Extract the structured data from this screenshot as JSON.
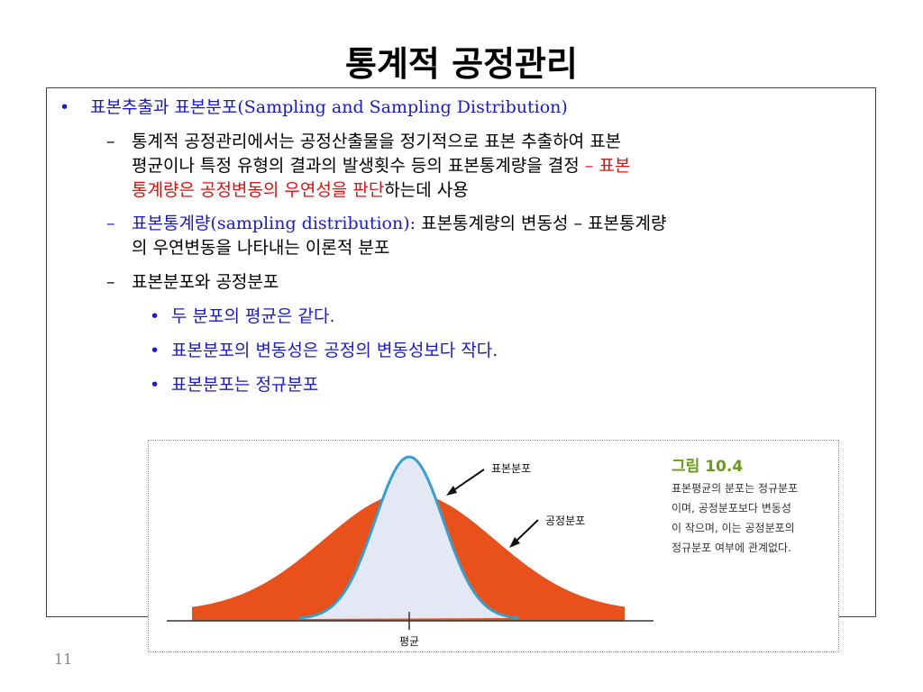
{
  "slide": {
    "title": "통계적 공정관리",
    "page_number": "11"
  },
  "bullets": {
    "b1": {
      "marker": "•",
      "text_blue": "표본추출과 표본분포(Sampling and Sampling Distribution)"
    },
    "d1": {
      "marker": "–",
      "line1": "통계적 공정관리에서는 공정산출물을 정기적으로 표본 추출하여 표본",
      "line2_black": "평균이나 특정 유형의 결과의 발생횟수 등의 표본통계량을 결정 ",
      "line2_red": "– 표본",
      "line3_red": "통계량은 공정변동의 우연성을 판단",
      "line3_black": "하는데 사용"
    },
    "d2": {
      "marker": "–",
      "line1_blue": "표본통계량(sampling distribution):",
      "line1_black": " 표본통계량의 변동성 – 표본통계량",
      "line2": "의 우연변동을 나타내는 이론적 분포"
    },
    "d3": {
      "marker": "–",
      "text": "표본분포와 공정분포"
    },
    "sub": [
      {
        "marker": "•",
        "text": "두 분포의 평균은 같다."
      },
      {
        "marker": "•",
        "text": "표본분포의 변동성은 공정의 변동성보다 작다."
      },
      {
        "marker": "•",
        "text": "표본분포는 정규분포"
      }
    ]
  },
  "figure": {
    "title": "그림 10.4",
    "caption_lines": [
      "표본평균의 분포는 정규분포",
      "이며, 공정분포보다 변동성",
      "이 작으며, 이는 공정분포의",
      "정규분포 여부에 관계없다."
    ],
    "label_sampling": "표본분포",
    "label_process": "공정분포",
    "label_mean": "평균",
    "colors": {
      "process_fill": "#e8501c",
      "sampling_fill": "#e4e8f4",
      "sampling_stroke": "#3a9ec8",
      "caption_title": "#6a9a1e"
    }
  },
  "colors": {
    "blue_text": "#1a1ac8",
    "red_text": "#e01010"
  }
}
